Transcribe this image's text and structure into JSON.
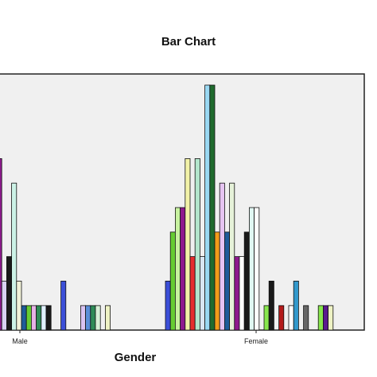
{
  "chart_data": {
    "type": "bar",
    "title": "Bar Chart",
    "xlabel": "Gender",
    "ylabel": "",
    "categories": [
      "Male",
      "Female"
    ],
    "ylim": [
      0,
      10
    ],
    "grid": false,
    "groups": [
      {
        "category": "Male",
        "bars": [
          {
            "color": "#8e1a8e",
            "value": 7
          },
          {
            "color": "#d9d2f2",
            "value": 2
          },
          {
            "color": "#1a1a1a",
            "value": 3
          },
          {
            "color": "#ccf2e6",
            "value": 6
          },
          {
            "color": "#f2f2d9",
            "value": 2
          },
          {
            "color": "#1f5c99",
            "value": 1
          },
          {
            "color": "#66cc33",
            "value": 1
          },
          {
            "color": "#e6b3e6",
            "value": 1
          },
          {
            "color": "#2e8b57",
            "value": 1
          },
          {
            "color": "#e0f0ff",
            "value": 1
          },
          {
            "color": "#1a1a1a",
            "value": 1
          },
          {
            "color": "#ffffff",
            "value": 0
          },
          {
            "color": "#ffffff",
            "value": 0
          },
          {
            "color": "#3b4fd8",
            "value": 2
          },
          {
            "color": "#ffffff",
            "value": 0
          },
          {
            "color": "#ffffff",
            "value": 0
          },
          {
            "color": "#ffffff",
            "value": 0
          },
          {
            "color": "#d9c4f2",
            "value": 1
          },
          {
            "color": "#5a8fd8",
            "value": 1
          },
          {
            "color": "#2e8b57",
            "value": 1
          },
          {
            "color": "#d8f0d8",
            "value": 1
          },
          {
            "color": "#ffffff",
            "value": 0
          },
          {
            "color": "#eef2c4",
            "value": 1
          }
        ]
      },
      {
        "category": "Female",
        "bars": [
          {
            "color": "#3b4fd8",
            "value": 2
          },
          {
            "color": "#66cc33",
            "value": 4
          },
          {
            "color": "#c8f2a0",
            "value": 5
          },
          {
            "color": "#8e1a8e",
            "value": 5
          },
          {
            "color": "#f2f2a8",
            "value": 7
          },
          {
            "color": "#e62e2e",
            "value": 3
          },
          {
            "color": "#b3e6cc",
            "value": 7
          },
          {
            "color": "#d9e6f2",
            "value": 3
          },
          {
            "color": "#9ad8f2",
            "value": 10
          },
          {
            "color": "#1f6b2e",
            "value": 10
          },
          {
            "color": "#f29c1a",
            "value": 4
          },
          {
            "color": "#e6c4f2",
            "value": 6
          },
          {
            "color": "#1f5c99",
            "value": 4
          },
          {
            "color": "#e6f2d9",
            "value": 6
          },
          {
            "color": "#8e1a8e",
            "value": 3
          },
          {
            "color": "#ffffff",
            "value": 3
          },
          {
            "color": "#1a1a1a",
            "value": 4
          },
          {
            "color": "#e0f7f2",
            "value": 5
          },
          {
            "color": "#ffffff",
            "value": 5
          },
          {
            "color": "#ffffff",
            "value": 0
          },
          {
            "color": "#88e64d",
            "value": 1
          },
          {
            "color": "#1a1a1a",
            "value": 2
          },
          {
            "color": "#ffffff",
            "value": 0
          },
          {
            "color": "#b31a1a",
            "value": 1
          },
          {
            "color": "#ffffff",
            "value": 0
          },
          {
            "color": "#ffffff",
            "value": 1
          },
          {
            "color": "#3399cc",
            "value": 2
          },
          {
            "color": "#ffffff",
            "value": 0
          },
          {
            "color": "#666666",
            "value": 1
          },
          {
            "color": "#ffffff",
            "value": 0
          },
          {
            "color": "#ffffff",
            "value": 0
          },
          {
            "color": "#88e64d",
            "value": 1
          },
          {
            "color": "#5a1a8e",
            "value": 1
          },
          {
            "color": "#eef2c4",
            "value": 1
          }
        ]
      }
    ]
  }
}
